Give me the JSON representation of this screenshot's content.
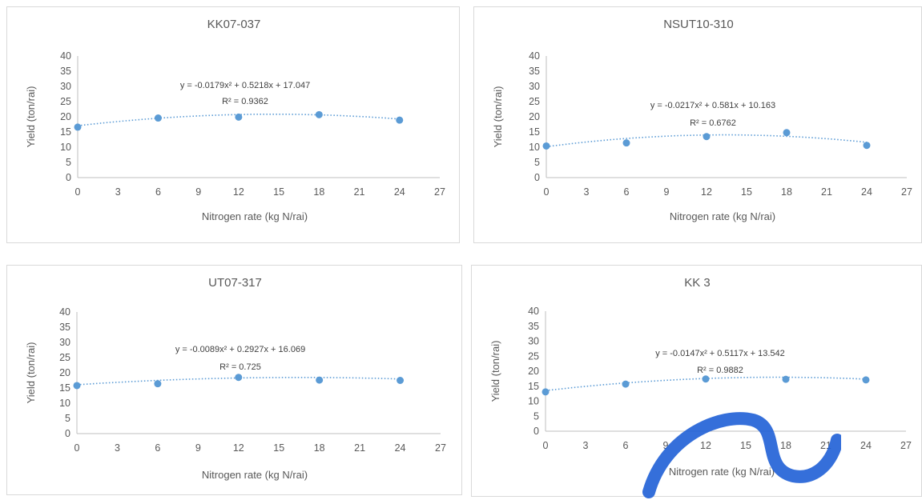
{
  "style": {
    "series_color": "#5b9bd5",
    "trend_color": "#5b9bd5",
    "axis_color": "#bfbfbf",
    "text_color": "#595959"
  },
  "chart_data": [
    {
      "type": "scatter",
      "title": "KK07-037",
      "xlabel": "Nitrogen rate (kg N/rai)",
      "ylabel": "Yield (ton/rai)",
      "xlim": [
        0,
        27
      ],
      "ylim": [
        0,
        40
      ],
      "xticks": [
        "0",
        "3",
        "6",
        "9",
        "12",
        "15",
        "18",
        "21",
        "24",
        "27"
      ],
      "yticks": [
        "0",
        "5",
        "10",
        "15",
        "20",
        "25",
        "30",
        "35",
        "40"
      ],
      "series": [
        {
          "x": [
            0,
            6,
            12,
            18,
            24
          ],
          "values": [
            16.6,
            19.6,
            19.9,
            20.7,
            18.9
          ]
        }
      ],
      "trendline": {
        "type": "polynomial",
        "a": -0.0179,
        "b": 0.5218,
        "c": 17.047
      },
      "equation": "y = -0.0179x² + 0.5218x + 17.047",
      "r2": "R² = 0.9362"
    },
    {
      "type": "scatter",
      "title": "NSUT10-310",
      "xlabel": "Nitrogen rate (kg N/rai)",
      "ylabel": "Yield (ton/rai)",
      "xlim": [
        0,
        27
      ],
      "ylim": [
        0,
        40
      ],
      "xticks": [
        "0",
        "3",
        "6",
        "9",
        "12",
        "15",
        "18",
        "21",
        "24",
        "27"
      ],
      "yticks": [
        "0",
        "5",
        "10",
        "15",
        "20",
        "25",
        "30",
        "35",
        "40"
      ],
      "series": [
        {
          "x": [
            0,
            6,
            12,
            18,
            24
          ],
          "values": [
            10.4,
            11.4,
            13.5,
            14.8,
            10.6
          ]
        }
      ],
      "trendline": {
        "type": "polynomial",
        "a": -0.0217,
        "b": 0.581,
        "c": 10.163
      },
      "equation": "y = -0.0217x² + 0.581x + 10.163",
      "r2": "R² = 0.6762"
    },
    {
      "type": "scatter",
      "title": "UT07-317",
      "xlabel": "Nitrogen rate (kg N/rai)",
      "ylabel": "Yield (ton/rai)",
      "xlim": [
        0,
        27
      ],
      "ylim": [
        0,
        40
      ],
      "xticks": [
        "0",
        "3",
        "6",
        "9",
        "12",
        "15",
        "18",
        "21",
        "24",
        "27"
      ],
      "yticks": [
        "0",
        "5",
        "10",
        "15",
        "20",
        "25",
        "30",
        "35",
        "40"
      ],
      "series": [
        {
          "x": [
            0,
            6,
            12,
            18,
            24
          ],
          "values": [
            15.8,
            16.4,
            18.5,
            17.6,
            17.5
          ]
        }
      ],
      "trendline": {
        "type": "polynomial",
        "a": -0.0089,
        "b": 0.2927,
        "c": 16.069
      },
      "equation": "y = -0.0089x² + 0.2927x + 16.069",
      "r2": "R² = 0.725"
    },
    {
      "type": "scatter",
      "title": "KK 3",
      "xlabel": "Nitrogen rate (kg N/rai)",
      "ylabel": "Yield (ton/rai)",
      "xlim": [
        0,
        27
      ],
      "ylim": [
        0,
        40
      ],
      "xticks": [
        "0",
        "3",
        "6",
        "9",
        "12",
        "15",
        "18",
        "21",
        "24",
        "27"
      ],
      "yticks": [
        "0",
        "5",
        "10",
        "15",
        "20",
        "25",
        "30",
        "35",
        "40"
      ],
      "series": [
        {
          "x": [
            0,
            6,
            12,
            18,
            24
          ],
          "values": [
            13.1,
            15.7,
            17.4,
            17.3,
            17.1
          ]
        }
      ],
      "trendline": {
        "type": "polynomial",
        "a": -0.0147,
        "b": 0.5117,
        "c": 13.542
      },
      "equation": "y = -0.0147x² + 0.5117x + 13.542",
      "r2": "R² = 0.9882"
    }
  ]
}
